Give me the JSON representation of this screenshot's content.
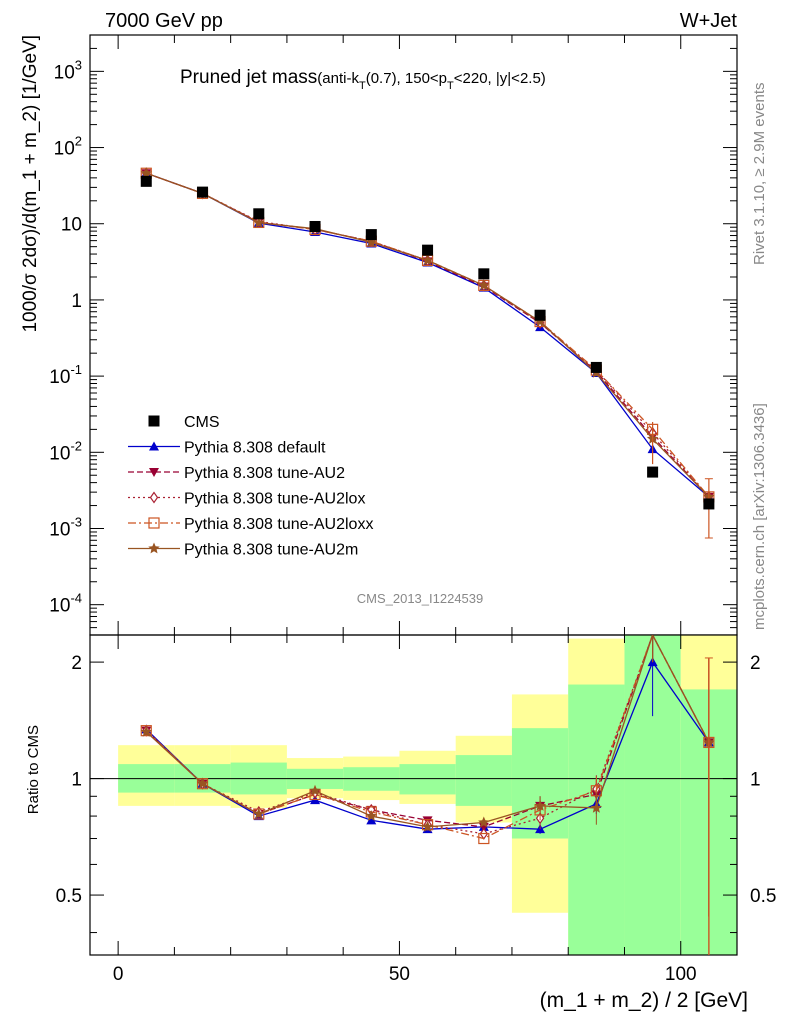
{
  "header": {
    "left": "7000 GeV pp",
    "right": "W+Jet"
  },
  "title": {
    "main": "Pruned jet mass",
    "sub_pre": "(anti-k",
    "sub_T1": "T",
    "sub_mid": "(0.7), 150<p",
    "sub_T2": "T",
    "sub_post": "<220, |y|<2.5)"
  },
  "side_labels": {
    "rivet": "Rivet 3.1.10, ≥ 2.9M events",
    "mcplots": "mcplots.cern.ch [arXiv:1306.3436]"
  },
  "analysis_id": "CMS_2013_I1224539",
  "colors": {
    "cms": "#000000",
    "default": "#0000cc",
    "au2": "#990033",
    "au2lox": "#aa2233",
    "au2loxx": "#cc5522",
    "au2m": "#995522",
    "band_green": "#99ff99",
    "band_yellow": "#ffff99"
  },
  "chart_data": {
    "type": "scatter",
    "xlabel": "(m_1 + m_2) / 2 [GeV]",
    "ylabel_main": "1000/σ 2dσ)/d(m_1 + m_2) [1/GeV]",
    "ylabel_ratio": "Ratio to CMS",
    "xlim": [
      -5,
      110
    ],
    "ylim_main": [
      4e-05,
      3000
    ],
    "ylim_ratio": [
      0.35,
      2.35
    ],
    "log_y_main": true,
    "log_y_ratio": true,
    "x_ticks": [
      {
        "v": 0,
        "label": "0"
      },
      {
        "v": 50,
        "label": "50"
      },
      {
        "v": 100,
        "label": "100"
      }
    ],
    "y_ticks_main": [
      {
        "v": 0.0001,
        "b": "10",
        "e": "-4"
      },
      {
        "v": 0.001,
        "b": "10",
        "e": "-3"
      },
      {
        "v": 0.01,
        "b": "10",
        "e": "-2"
      },
      {
        "v": 0.1,
        "b": "10",
        "e": "-1"
      },
      {
        "v": 1,
        "b": "1",
        "e": ""
      },
      {
        "v": 10,
        "b": "10",
        "e": ""
      },
      {
        "v": 100,
        "b": "10",
        "e": "2"
      },
      {
        "v": 1000,
        "b": "10",
        "e": "3"
      }
    ],
    "y_ticks_ratio": [
      {
        "v": 0.5,
        "label": "0.5"
      },
      {
        "v": 1,
        "label": "1"
      },
      {
        "v": 2,
        "label": "2"
      }
    ],
    "x": [
      5,
      15,
      25,
      35,
      45,
      55,
      65,
      75,
      85,
      95,
      105
    ],
    "bins": [
      [
        0,
        10
      ],
      [
        10,
        20
      ],
      [
        20,
        30
      ],
      [
        30,
        40
      ],
      [
        40,
        50
      ],
      [
        50,
        60
      ],
      [
        60,
        70
      ],
      [
        70,
        80
      ],
      [
        80,
        90
      ],
      [
        90,
        100
      ],
      [
        100,
        110
      ]
    ],
    "cms": {
      "name": "CMS",
      "values": [
        36,
        26,
        13.5,
        9.2,
        7.2,
        4.5,
        2.2,
        0.63,
        0.13,
        0.0055,
        0.0021
      ]
    },
    "ratio_band_green": [
      [
        0.92,
        1.09
      ],
      [
        0.92,
        1.09
      ],
      [
        0.91,
        1.1
      ],
      [
        0.94,
        1.06
      ],
      [
        0.93,
        1.07
      ],
      [
        0.91,
        1.09
      ],
      [
        0.85,
        1.15
      ],
      [
        0.7,
        1.35
      ],
      [
        0.3,
        1.75
      ],
      [
        0.3,
        2.6
      ],
      [
        0.3,
        1.7
      ]
    ],
    "ratio_band_yellow": [
      [
        0.85,
        1.22
      ],
      [
        0.85,
        1.22
      ],
      [
        0.84,
        1.22
      ],
      [
        0.89,
        1.13
      ],
      [
        0.88,
        1.14
      ],
      [
        0.86,
        1.18
      ],
      [
        0.77,
        1.29
      ],
      [
        0.45,
        1.65
      ],
      [
        0.3,
        2.3
      ],
      [
        0.3,
        2.6
      ],
      [
        0.3,
        2.35
      ]
    ],
    "series": [
      {
        "name": "Pythia 8.308 default",
        "key": "default",
        "marker": "triangle-up",
        "dash": "",
        "values": [
          46,
          25,
          10.2,
          7.8,
          5.5,
          3.1,
          1.45,
          0.44,
          0.11,
          0.011,
          0.0026
        ],
        "ratio": [
          1.34,
          0.97,
          0.8,
          0.88,
          0.78,
          0.74,
          0.75,
          0.74,
          0.86,
          2.0,
          1.24
        ],
        "ratio_err": [
          0.0,
          0.0,
          0.0,
          0.0,
          0.0,
          0.0,
          0.0,
          0.02,
          0.05,
          0.55,
          0.0
        ]
      },
      {
        "name": "Pythia 8.308 tune-AU2",
        "key": "au2",
        "marker": "triangle-down",
        "dash": "6,3",
        "values": [
          46,
          25,
          10.5,
          8.4,
          5.9,
          3.2,
          1.5,
          0.5,
          0.115,
          0.016,
          0.0026
        ],
        "ratio": [
          1.33,
          0.97,
          0.81,
          0.91,
          0.83,
          0.78,
          0.75,
          0.85,
          0.91,
          2.6,
          1.24
        ],
        "ratio_err": [
          0.0,
          0.0,
          0.0,
          0.0,
          0.0,
          0.0,
          0.0,
          0.05,
          0.08,
          0.6,
          0.8
        ]
      },
      {
        "name": "Pythia 8.308 tune-AU2lox",
        "key": "au2lox",
        "marker": "diamond",
        "dash": "2,3",
        "values": [
          46,
          25,
          10.7,
          8.4,
          5.9,
          3.3,
          1.55,
          0.5,
          0.12,
          0.018,
          0.0026
        ],
        "ratio": [
          1.33,
          0.97,
          0.82,
          0.92,
          0.83,
          0.76,
          0.72,
          0.79,
          0.94,
          2.6,
          1.24
        ],
        "ratio_err": [
          0.0,
          0.0,
          0.0,
          0.0,
          0.0,
          0.0,
          0.0,
          0.05,
          0.08,
          0.6,
          0.8
        ]
      },
      {
        "name": "Pythia 8.308 tune-AU2loxx",
        "key": "au2loxx",
        "marker": "square-open",
        "dash": "8,3,2,3",
        "values": [
          46,
          25,
          10.4,
          8.4,
          5.9,
          3.3,
          1.55,
          0.52,
          0.12,
          0.02,
          0.0026
        ],
        "ratio": [
          1.33,
          0.97,
          0.81,
          0.91,
          0.82,
          0.76,
          0.7,
          0.83,
          0.93,
          2.6,
          1.24
        ],
        "ratio_err": [
          0.0,
          0.0,
          0.0,
          0.0,
          0.0,
          0.0,
          0.0,
          0.05,
          0.08,
          0.6,
          0.8
        ]
      },
      {
        "name": "Pythia 8.308 tune-AU2m",
        "key": "au2m",
        "marker": "star",
        "dash": "",
        "values": [
          46,
          25,
          10.3,
          8.6,
          5.7,
          3.3,
          1.55,
          0.52,
          0.11,
          0.015,
          0.0026
        ],
        "ratio": [
          1.32,
          0.97,
          0.81,
          0.93,
          0.8,
          0.75,
          0.77,
          0.85,
          0.84,
          2.6,
          1.24
        ],
        "ratio_err": [
          0.0,
          0.0,
          0.0,
          0.0,
          0.0,
          0.0,
          0.0,
          0.05,
          0.08,
          0.6,
          0.8
        ]
      }
    ],
    "legend_placement": "bottom-left"
  }
}
